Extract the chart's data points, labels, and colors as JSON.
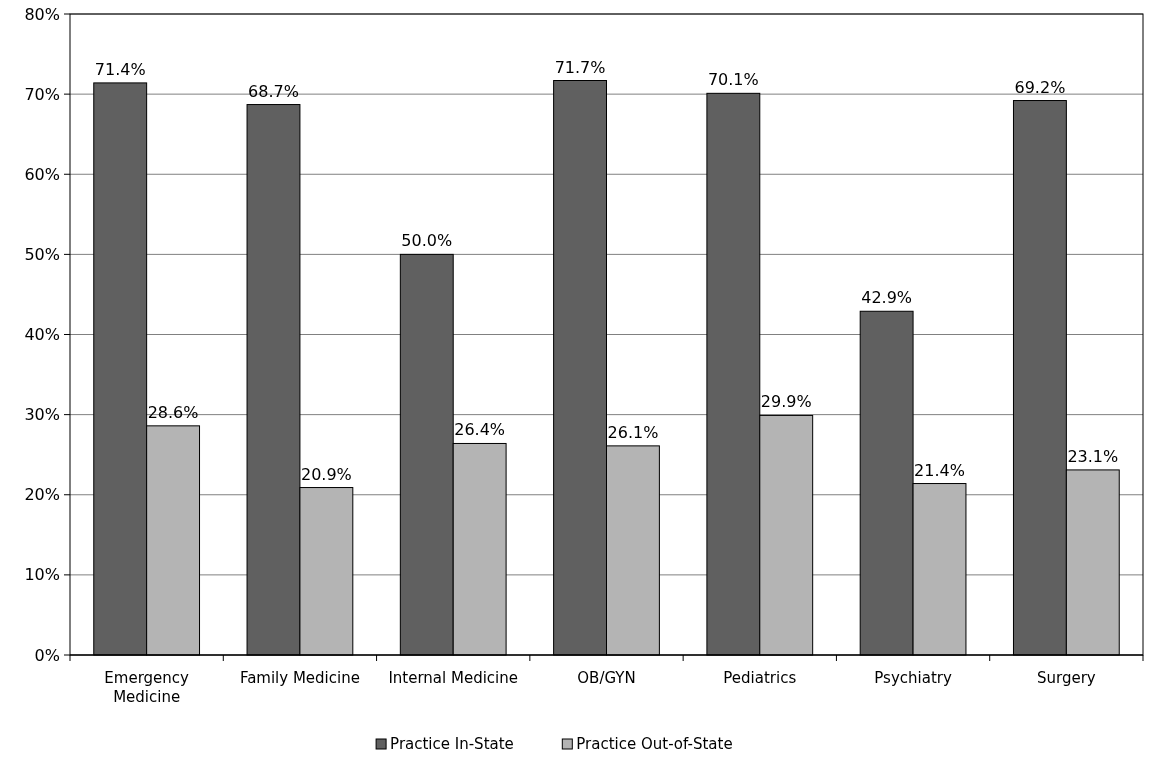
{
  "chart_data": {
    "type": "bar",
    "categories": [
      "Emergency Medicine",
      "Family Medicine",
      "Internal Medicine",
      "OB/GYN",
      "Pediatrics",
      "Psychiatry",
      "Surgery"
    ],
    "series": [
      {
        "name": "Practice In-State",
        "color": "#606060",
        "values": [
          71.4,
          68.7,
          50.0,
          71.7,
          70.1,
          42.9,
          69.2
        ],
        "value_labels": [
          "71.4%",
          "68.7%",
          "50.0%",
          "71.7%",
          "70.1%",
          "42.9%",
          "69.2%"
        ]
      },
      {
        "name": "Practice Out-of-State",
        "color": "#b4b4b4",
        "values": [
          28.6,
          20.9,
          26.4,
          26.1,
          29.9,
          21.4,
          23.1
        ],
        "value_labels": [
          "28.6%",
          "20.9%",
          "26.4%",
          "26.1%",
          "29.9%",
          "21.4%",
          "23.1%"
        ]
      }
    ],
    "ylim": [
      0,
      80
    ],
    "yticks": [
      {
        "value": 0,
        "label": "0%"
      },
      {
        "value": 10,
        "label": "10%"
      },
      {
        "value": 20,
        "label": "20%"
      },
      {
        "value": 30,
        "label": "30%"
      },
      {
        "value": 40,
        "label": "40%"
      },
      {
        "value": 50,
        "label": "50%"
      },
      {
        "value": 60,
        "label": "60%"
      },
      {
        "value": 70,
        "label": "70%"
      },
      {
        "value": 80,
        "label": "80%"
      }
    ],
    "grid": "y",
    "legend": "bottom"
  }
}
